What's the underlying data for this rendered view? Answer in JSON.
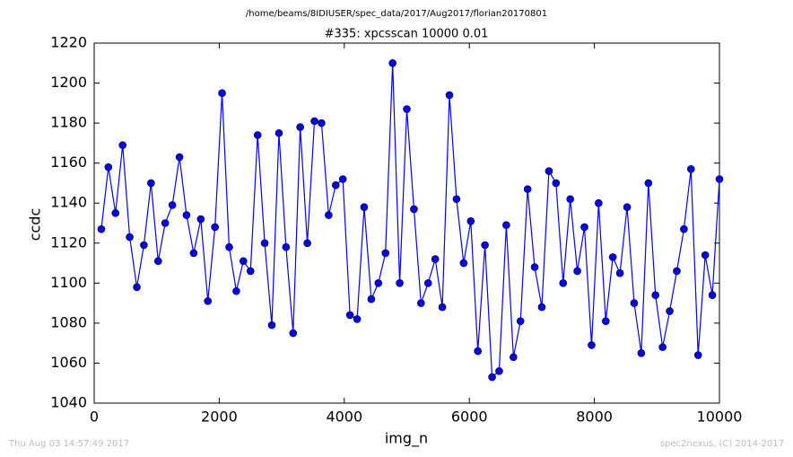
{
  "chart_data": {
    "type": "line",
    "header": "/home/beams/8IDIUSER/spec_data/2017/Aug2017/florian20170801",
    "title": "#335: xpcsscan 10000 0.01",
    "x_label": "img_n",
    "y_label": "ccdc",
    "footer_left": "Thu Aug 03 14:57:49 2017",
    "footer_right": "spec2nexus, (C) 2014-2017",
    "x": [
      114,
      227,
      341,
      455,
      568,
      682,
      795,
      909,
      1023,
      1136,
      1250,
      1364,
      1477,
      1591,
      1705,
      1818,
      1932,
      2045,
      2159,
      2273,
      2386,
      2500,
      2614,
      2727,
      2841,
      2955,
      3068,
      3182,
      3295,
      3409,
      3523,
      3636,
      3750,
      3864,
      3977,
      4091,
      4205,
      4318,
      4432,
      4545,
      4659,
      4773,
      4886,
      5000,
      5114,
      5227,
      5341,
      5455,
      5568,
      5682,
      5795,
      5909,
      6023,
      6136,
      6250,
      6364,
      6477,
      6591,
      6705,
      6818,
      6932,
      7045,
      7159,
      7273,
      7386,
      7500,
      7614,
      7727,
      7841,
      7955,
      8068,
      8182,
      8295,
      8409,
      8523,
      8636,
      8750,
      8864,
      8977,
      9091,
      9205,
      9318,
      9432,
      9545,
      9659,
      9773,
      9886,
      10000
    ],
    "series": [
      {
        "name": "ccdc",
        "color": "#0000ff",
        "values": [
          1127,
          1158,
          1135,
          1169,
          1123,
          1098,
          1119,
          1150,
          1111,
          1130,
          1139,
          1163,
          1134,
          1115,
          1132,
          1091,
          1128,
          1195,
          1118,
          1096,
          1111,
          1106,
          1174,
          1120,
          1079,
          1175,
          1118,
          1075,
          1178,
          1120,
          1181,
          1180,
          1134,
          1149,
          1152,
          1084,
          1082,
          1138,
          1092,
          1100,
          1115,
          1210,
          1100,
          1187,
          1137,
          1090,
          1100,
          1112,
          1088,
          1194,
          1142,
          1110,
          1131,
          1066,
          1119,
          1053,
          1056,
          1129,
          1063,
          1081,
          1147,
          1108,
          1088,
          1156,
          1150,
          1100,
          1142,
          1106,
          1128,
          1069,
          1140,
          1081,
          1113,
          1105,
          1138,
          1090,
          1065,
          1150,
          1094,
          1068,
          1086,
          1106,
          1127,
          1157,
          1064,
          1114,
          1094,
          1152
        ]
      }
    ],
    "xlim": [
      0,
      10000
    ],
    "xticks": [
      0,
      2000,
      4000,
      6000,
      8000,
      10000
    ],
    "ylim": [
      1040,
      1220
    ],
    "yticks": [
      1040,
      1060,
      1080,
      1100,
      1120,
      1140,
      1160,
      1180,
      1200,
      1220
    ]
  }
}
